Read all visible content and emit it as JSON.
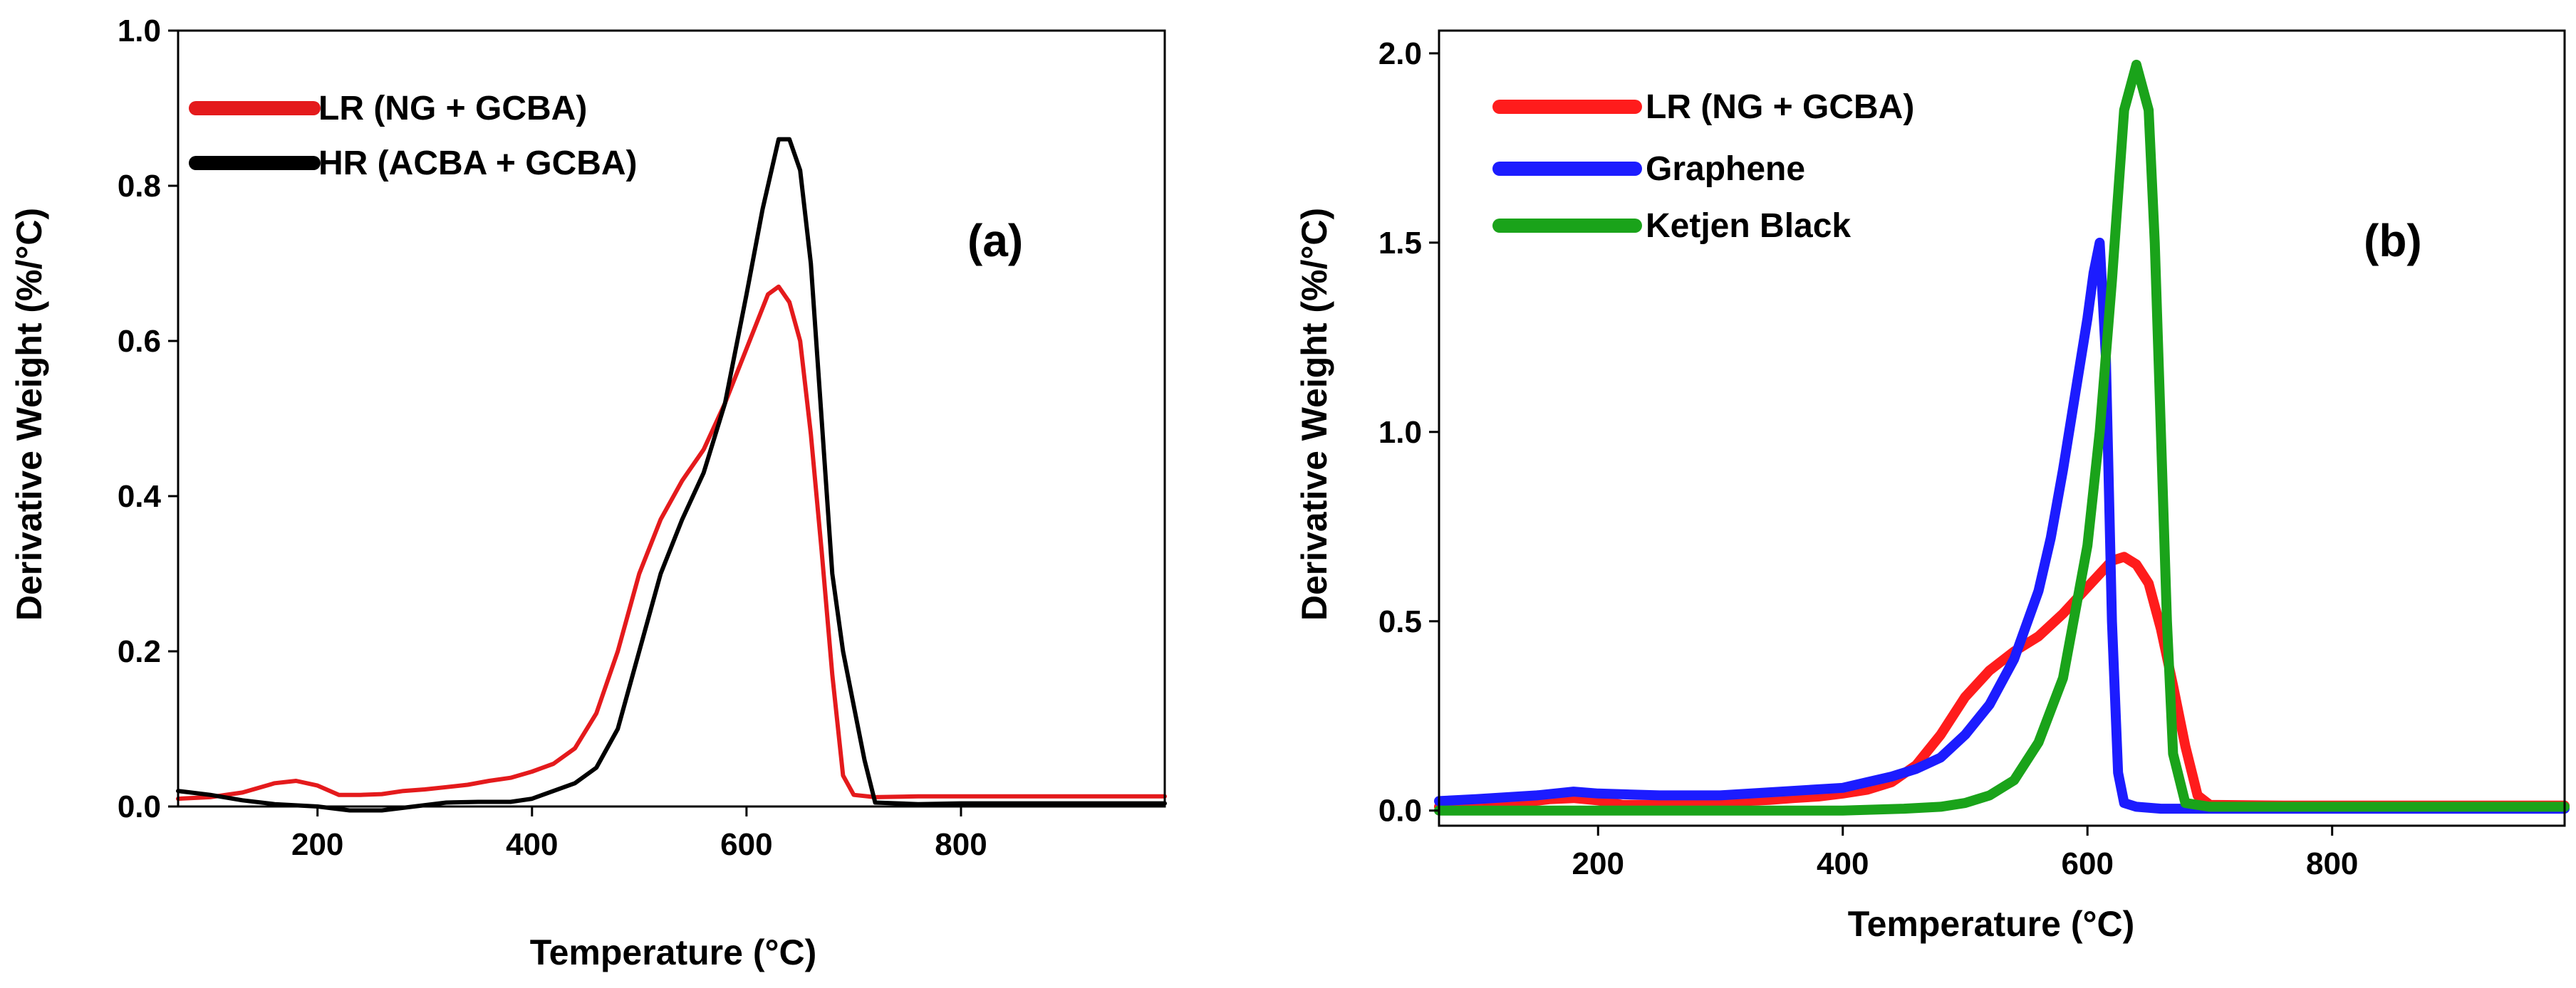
{
  "chart_data": [
    {
      "type": "line",
      "panel_label": "(a)",
      "xlabel": "Temperature (°C)",
      "ylabel": "Derivative Weight (%/°C)",
      "xlim": [
        70,
        990
      ],
      "ylim": [
        0.0,
        1.0
      ],
      "xticks": [
        200,
        400,
        600,
        800
      ],
      "xtick_labels": [
        "200",
        "400",
        "600",
        "800"
      ],
      "yticks": [
        0.0,
        0.2,
        0.4,
        0.6,
        0.8,
        1.0
      ],
      "ytick_labels": [
        "0.0",
        "0.2",
        "0.4",
        "0.6",
        "0.8",
        "1.0"
      ],
      "legend_position": "top-left",
      "series": [
        {
          "name": "LR (NG + GCBA)",
          "color": "#e41a1c",
          "x": [
            70,
            100,
            130,
            160,
            180,
            200,
            220,
            240,
            260,
            280,
            300,
            320,
            340,
            360,
            380,
            400,
            420,
            440,
            460,
            480,
            500,
            520,
            540,
            560,
            580,
            600,
            620,
            630,
            640,
            650,
            660,
            670,
            680,
            690,
            700,
            720,
            760,
            800,
            900,
            990
          ],
          "y": [
            0.01,
            0.012,
            0.018,
            0.03,
            0.033,
            0.027,
            0.015,
            0.015,
            0.016,
            0.02,
            0.022,
            0.025,
            0.028,
            0.033,
            0.037,
            0.045,
            0.055,
            0.075,
            0.12,
            0.2,
            0.3,
            0.37,
            0.42,
            0.46,
            0.52,
            0.59,
            0.66,
            0.67,
            0.65,
            0.6,
            0.48,
            0.33,
            0.17,
            0.04,
            0.015,
            0.012,
            0.013,
            0.013,
            0.013,
            0.013
          ]
        },
        {
          "name": "HR (ACBA + GCBA)",
          "color": "#000000",
          "x": [
            70,
            100,
            130,
            160,
            200,
            230,
            260,
            290,
            320,
            350,
            380,
            400,
            420,
            440,
            460,
            480,
            500,
            520,
            540,
            560,
            580,
            600,
            615,
            630,
            640,
            650,
            660,
            670,
            680,
            690,
            700,
            710,
            720,
            760,
            800,
            900,
            990
          ],
          "y": [
            0.02,
            0.015,
            0.008,
            0.003,
            0.0,
            -0.005,
            -0.005,
            0.0,
            0.005,
            0.006,
            0.006,
            0.01,
            0.02,
            0.03,
            0.05,
            0.1,
            0.2,
            0.3,
            0.37,
            0.43,
            0.52,
            0.66,
            0.77,
            0.86,
            0.86,
            0.82,
            0.7,
            0.5,
            0.3,
            0.2,
            0.13,
            0.06,
            0.005,
            0.003,
            0.004,
            0.004,
            0.004
          ]
        }
      ]
    },
    {
      "type": "line",
      "panel_label": "(b)",
      "xlabel": "Temperature (°C)",
      "ylabel": "Derivative Weight (%/°C)",
      "xlim": [
        70,
        990
      ],
      "ylim": [
        -0.04,
        2.06
      ],
      "xticks": [
        200,
        400,
        600,
        800
      ],
      "xtick_labels": [
        "200",
        "400",
        "600",
        "800"
      ],
      "yticks": [
        0.0,
        0.5,
        1.0,
        1.5,
        2.0
      ],
      "ytick_labels": [
        "0.0",
        "0.5",
        "1.0",
        "1.5",
        "2.0"
      ],
      "legend_position": "top-left",
      "series": [
        {
          "name": "LR (NG + GCBA)",
          "color": "#ff1c1c",
          "x": [
            70,
            100,
            130,
            160,
            180,
            200,
            220,
            240,
            260,
            280,
            300,
            320,
            340,
            360,
            380,
            400,
            420,
            440,
            460,
            480,
            500,
            520,
            540,
            560,
            580,
            600,
            620,
            630,
            640,
            650,
            660,
            670,
            680,
            690,
            700,
            760,
            990
          ],
          "y": [
            0.01,
            0.012,
            0.018,
            0.03,
            0.033,
            0.027,
            0.015,
            0.015,
            0.016,
            0.02,
            0.022,
            0.025,
            0.028,
            0.033,
            0.037,
            0.045,
            0.055,
            0.075,
            0.12,
            0.2,
            0.3,
            0.37,
            0.42,
            0.46,
            0.52,
            0.59,
            0.66,
            0.67,
            0.65,
            0.6,
            0.48,
            0.33,
            0.17,
            0.04,
            0.015,
            0.013,
            0.013
          ]
        },
        {
          "name": "Graphene",
          "color": "#1c1cff",
          "x": [
            70,
            100,
            150,
            180,
            200,
            250,
            300,
            350,
            400,
            420,
            440,
            460,
            480,
            500,
            520,
            540,
            560,
            570,
            580,
            590,
            600,
            605,
            610,
            615,
            620,
            625,
            630,
            640,
            660,
            700,
            800,
            990
          ],
          "y": [
            0.025,
            0.03,
            0.04,
            0.05,
            0.045,
            0.04,
            0.04,
            0.05,
            0.06,
            0.075,
            0.09,
            0.11,
            0.14,
            0.2,
            0.28,
            0.4,
            0.58,
            0.72,
            0.9,
            1.1,
            1.3,
            1.42,
            1.5,
            1.2,
            0.5,
            0.1,
            0.02,
            0.01,
            0.005,
            0.005,
            0.005,
            0.005
          ]
        },
        {
          "name": "Ketjen Black",
          "color": "#1aa31a",
          "x": [
            70,
            200,
            300,
            400,
            450,
            480,
            500,
            520,
            540,
            560,
            580,
            600,
            610,
            620,
            630,
            640,
            650,
            655,
            660,
            665,
            670,
            680,
            700,
            800,
            990
          ],
          "y": [
            0.0,
            0.0,
            0.0,
            0.0,
            0.005,
            0.01,
            0.02,
            0.04,
            0.08,
            0.18,
            0.35,
            0.7,
            1.0,
            1.4,
            1.85,
            1.97,
            1.85,
            1.5,
            1.0,
            0.5,
            0.15,
            0.02,
            0.01,
            0.01,
            0.01
          ]
        }
      ]
    }
  ]
}
